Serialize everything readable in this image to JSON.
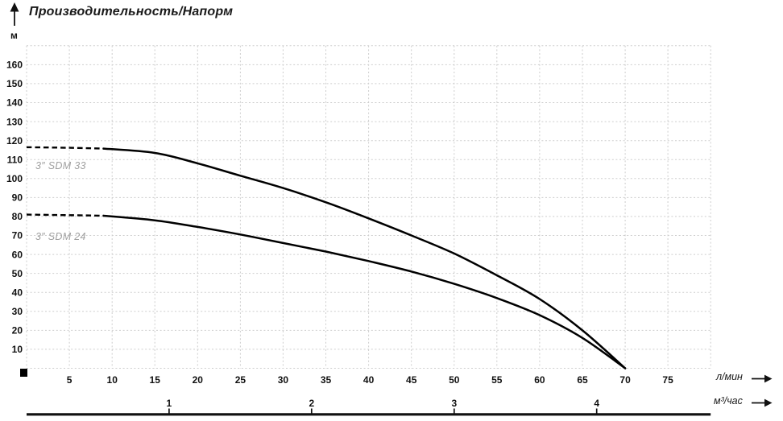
{
  "title": "Производительность/Напорм",
  "y_axis": {
    "unit": "м",
    "ticks": [
      160,
      150,
      140,
      130,
      120,
      110,
      100,
      90,
      80,
      70,
      60,
      50,
      40,
      30,
      20,
      10
    ]
  },
  "x_axis_lmin": {
    "label": "л/мин",
    "ticks": [
      5,
      10,
      15,
      20,
      25,
      30,
      35,
      40,
      45,
      50,
      55,
      60,
      65,
      70,
      75
    ]
  },
  "x_axis_m3h": {
    "label": "м³/час",
    "ticks": [
      1,
      2,
      3,
      4
    ]
  },
  "colors": {
    "curve": "#000000",
    "grid": "#cdcdcd",
    "text": "#111111",
    "curve_label": "#a0a0a0"
  },
  "chart_data": {
    "type": "line",
    "title": "Производительность/Напорм",
    "ylabel": "м",
    "xlabel_primary": "л/мин",
    "xlabel_secondary": "м³/час",
    "xlim_lmin": [
      0,
      80
    ],
    "ylim_m": [
      0,
      170
    ],
    "grid": true,
    "legend_position": "labels-on-plot",
    "series": [
      {
        "name": "3″ SDM 33",
        "dashed_until_lmin": 9,
        "points_lmin_m": [
          [
            0,
            116.5
          ],
          [
            5,
            116.2
          ],
          [
            9,
            115.8
          ],
          [
            15,
            113.5
          ],
          [
            20,
            108
          ],
          [
            25,
            101.5
          ],
          [
            30,
            95
          ],
          [
            35,
            87.5
          ],
          [
            40,
            79
          ],
          [
            45,
            70
          ],
          [
            50,
            60.5
          ],
          [
            55,
            49
          ],
          [
            60,
            36.5
          ],
          [
            65,
            20
          ],
          [
            70,
            0
          ]
        ]
      },
      {
        "name": "3″ SDM 24",
        "dashed_until_lmin": 9,
        "points_lmin_m": [
          [
            0,
            81
          ],
          [
            5,
            80.7
          ],
          [
            9,
            80.4
          ],
          [
            15,
            78
          ],
          [
            20,
            74.5
          ],
          [
            25,
            70.5
          ],
          [
            30,
            66
          ],
          [
            35,
            61.5
          ],
          [
            40,
            56.5
          ],
          [
            45,
            51
          ],
          [
            50,
            44.5
          ],
          [
            55,
            37
          ],
          [
            60,
            28
          ],
          [
            65,
            16
          ],
          [
            70,
            0
          ]
        ]
      }
    ]
  }
}
